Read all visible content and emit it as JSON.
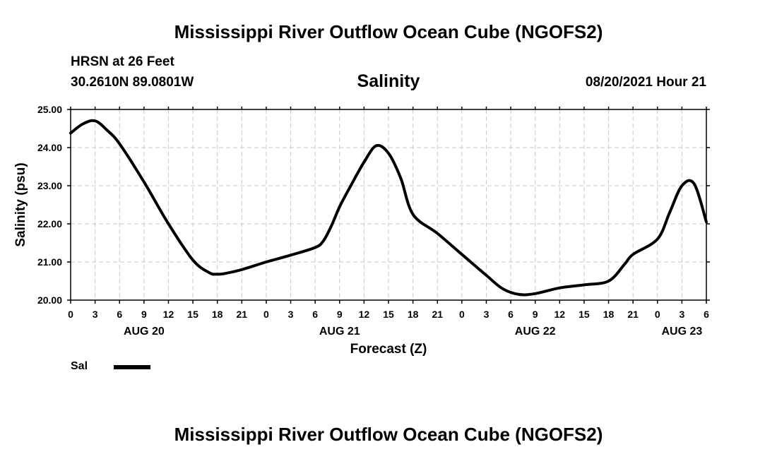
{
  "page": {
    "top_title": "Mississippi River Outflow Ocean Cube (NGOFS2)",
    "bottom_title": "Mississippi River Outflow Ocean Cube (NGOFS2)",
    "station": "HRSN at 26 Feet",
    "coords": "30.2610N  89.0801W",
    "variable": "Salinity",
    "run_time": "08/20/2021 Hour 21"
  },
  "legend": {
    "label": "Sal",
    "color": "#000000"
  },
  "chart_data": {
    "type": "line",
    "title": "Salinity",
    "xlabel": "Forecast (Z)",
    "ylabel": "Salinity (psu)",
    "xlim": [
      0,
      78
    ],
    "ylim": [
      20.0,
      25.0
    ],
    "grid": true,
    "y_ticks": [
      "20.00",
      "21.00",
      "22.00",
      "23.00",
      "24.00",
      "25.00"
    ],
    "x_tick_labels": [
      "0",
      "3",
      "6",
      "9",
      "12",
      "15",
      "18",
      "21",
      "0",
      "3",
      "6",
      "9",
      "12",
      "15",
      "18",
      "21",
      "0",
      "3",
      "6",
      "9",
      "12",
      "15",
      "18",
      "21",
      "0",
      "3",
      "6"
    ],
    "date_labels": [
      {
        "hour": 9,
        "label": "AUG 20"
      },
      {
        "hour": 33,
        "label": "AUG 21"
      },
      {
        "hour": 57,
        "label": "AUG 22"
      },
      {
        "hour": 75,
        "label": "AUG 23"
      }
    ],
    "series": [
      {
        "name": "Sal",
        "x": [
          0,
          1.5,
          3,
          4.5,
          6,
          9,
          12,
          15,
          17,
          18,
          19,
          21,
          24,
          27,
          30,
          31,
          32,
          33,
          34.5,
          36,
          37.5,
          39,
          40.5,
          42,
          45,
          48,
          51,
          53,
          55,
          57,
          60,
          63,
          66,
          68,
          69,
          72,
          73.5,
          75,
          76.5,
          78
        ],
        "values": [
          24.38,
          24.62,
          24.7,
          24.45,
          24.1,
          23.1,
          22.0,
          21.05,
          20.72,
          20.68,
          20.7,
          20.8,
          21.0,
          21.18,
          21.38,
          21.55,
          21.95,
          22.45,
          23.05,
          23.62,
          24.05,
          23.85,
          23.2,
          22.25,
          21.75,
          21.2,
          20.65,
          20.3,
          20.15,
          20.17,
          20.32,
          20.4,
          20.5,
          20.95,
          21.2,
          21.6,
          22.3,
          23.0,
          23.05,
          22.05
        ]
      }
    ]
  }
}
